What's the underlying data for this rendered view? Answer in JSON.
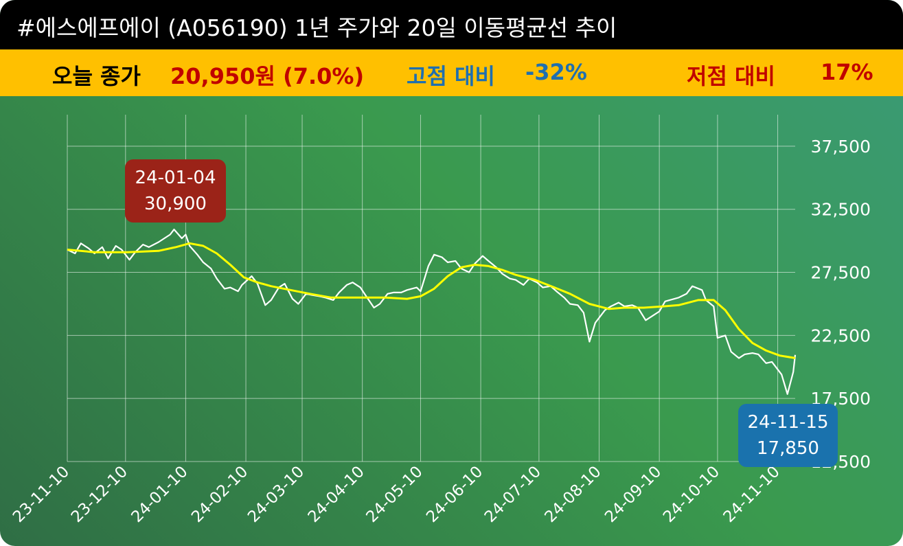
{
  "header": {
    "title": "#에스에프에이 (A056190) 1년 주가와 20일 이동평균선 추이"
  },
  "summary": {
    "close_label": "오늘 종가",
    "close_value": "20,950원 (7.0%)",
    "high_label": "고점 대비",
    "high_value": "-32%",
    "low_label": "저점 대비",
    "low_value": "17%"
  },
  "colors": {
    "title_bg": "#000000",
    "info_bg": "#ffc000",
    "close_color": "#c00000",
    "high_color": "#1f6fb0",
    "low_color": "#c00000",
    "price_line": "#ffffff",
    "ma_line": "#ffff00",
    "high_callout": "#9b2318",
    "low_callout": "#1a72ad"
  },
  "annotations": {
    "high": {
      "date": "24-01-04",
      "value": "30,900"
    },
    "low": {
      "date": "24-11-15",
      "value": "17,850"
    }
  },
  "chart_data": {
    "type": "line",
    "title": "",
    "xlabel": "",
    "ylabel": "",
    "ylim": [
      12500,
      40000
    ],
    "y_ticks": [
      "12,500",
      "17,500",
      "22,500",
      "27,500",
      "32,500",
      "37,500"
    ],
    "y_tick_values": [
      12500,
      17500,
      22500,
      27500,
      32500,
      37500
    ],
    "x_ticks": [
      "23-11-10",
      "23-12-10",
      "24-01-10",
      "24-02-10",
      "24-03-10",
      "24-04-10",
      "24-05-10",
      "24-06-10",
      "24-07-10",
      "24-08-10",
      "24-09-10",
      "24-10-10",
      "24-11-10"
    ],
    "x_range": [
      "2023-11-10",
      "2024-11-19"
    ],
    "grid": true,
    "series": [
      {
        "role": "price",
        "color": "#ffffff",
        "points": [
          [
            "2023-11-10",
            29300
          ],
          [
            "2023-11-14",
            29000
          ],
          [
            "2023-11-17",
            29800
          ],
          [
            "2023-11-21",
            29400
          ],
          [
            "2023-11-24",
            29000
          ],
          [
            "2023-11-28",
            29500
          ],
          [
            "2023-12-01",
            28600
          ],
          [
            "2023-12-05",
            29600
          ],
          [
            "2023-12-08",
            29300
          ],
          [
            "2023-12-12",
            28500
          ],
          [
            "2023-12-15",
            29100
          ],
          [
            "2023-12-19",
            29700
          ],
          [
            "2023-12-22",
            29500
          ],
          [
            "2023-12-27",
            29900
          ],
          [
            "2024-01-02",
            30500
          ],
          [
            "2024-01-04",
            30900
          ],
          [
            "2024-01-08",
            30200
          ],
          [
            "2024-01-10",
            30500
          ],
          [
            "2024-01-12",
            29600
          ],
          [
            "2024-01-16",
            28900
          ],
          [
            "2024-01-19",
            28300
          ],
          [
            "2024-01-23",
            27800
          ],
          [
            "2024-01-26",
            27000
          ],
          [
            "2024-01-30",
            26200
          ],
          [
            "2024-02-02",
            26300
          ],
          [
            "2024-02-06",
            26000
          ],
          [
            "2024-02-08",
            26500
          ],
          [
            "2024-02-13",
            27200
          ],
          [
            "2024-02-16",
            26600
          ],
          [
            "2024-02-20",
            24900
          ],
          [
            "2024-02-23",
            25300
          ],
          [
            "2024-02-27",
            26300
          ],
          [
            "2024-03-01",
            26600
          ],
          [
            "2024-03-05",
            25400
          ],
          [
            "2024-03-08",
            25000
          ],
          [
            "2024-03-12",
            25800
          ],
          [
            "2024-03-15",
            25700
          ],
          [
            "2024-03-19",
            25600
          ],
          [
            "2024-03-22",
            25500
          ],
          [
            "2024-03-26",
            25300
          ],
          [
            "2024-03-29",
            25900
          ],
          [
            "2024-04-02",
            26500
          ],
          [
            "2024-04-05",
            26700
          ],
          [
            "2024-04-09",
            26300
          ],
          [
            "2024-04-12",
            25600
          ],
          [
            "2024-04-16",
            24700
          ],
          [
            "2024-04-19",
            25000
          ],
          [
            "2024-04-23",
            25800
          ],
          [
            "2024-04-26",
            25900
          ],
          [
            "2024-04-30",
            25900
          ],
          [
            "2024-05-03",
            26100
          ],
          [
            "2024-05-08",
            26300
          ],
          [
            "2024-05-10",
            26000
          ],
          [
            "2024-05-14",
            28000
          ],
          [
            "2024-05-17",
            28900
          ],
          [
            "2024-05-21",
            28700
          ],
          [
            "2024-05-24",
            28300
          ],
          [
            "2024-05-28",
            28400
          ],
          [
            "2024-05-31",
            27800
          ],
          [
            "2024-06-04",
            27500
          ],
          [
            "2024-06-07",
            28200
          ],
          [
            "2024-06-11",
            28800
          ],
          [
            "2024-06-14",
            28400
          ],
          [
            "2024-06-18",
            27900
          ],
          [
            "2024-06-21",
            27400
          ],
          [
            "2024-06-25",
            27000
          ],
          [
            "2024-06-28",
            26900
          ],
          [
            "2024-07-02",
            26500
          ],
          [
            "2024-07-05",
            27000
          ],
          [
            "2024-07-09",
            26700
          ],
          [
            "2024-07-12",
            26300
          ],
          [
            "2024-07-16",
            26400
          ],
          [
            "2024-07-19",
            26000
          ],
          [
            "2024-07-23",
            25500
          ],
          [
            "2024-07-26",
            25000
          ],
          [
            "2024-07-30",
            24900
          ],
          [
            "2024-08-02",
            24300
          ],
          [
            "2024-08-05",
            22000
          ],
          [
            "2024-08-08",
            23500
          ],
          [
            "2024-08-13",
            24500
          ],
          [
            "2024-08-16",
            24800
          ],
          [
            "2024-08-20",
            25100
          ],
          [
            "2024-08-23",
            24800
          ],
          [
            "2024-08-27",
            24900
          ],
          [
            "2024-08-30",
            24700
          ],
          [
            "2024-09-03",
            23700
          ],
          [
            "2024-09-06",
            24000
          ],
          [
            "2024-09-10",
            24400
          ],
          [
            "2024-09-13",
            25200
          ],
          [
            "2024-09-20",
            25500
          ],
          [
            "2024-09-24",
            25800
          ],
          [
            "2024-09-27",
            26400
          ],
          [
            "2024-10-02",
            26100
          ],
          [
            "2024-10-04",
            25300
          ],
          [
            "2024-10-08",
            24800
          ],
          [
            "2024-10-10",
            22300
          ],
          [
            "2024-10-14",
            22500
          ],
          [
            "2024-10-17",
            21200
          ],
          [
            "2024-10-21",
            20700
          ],
          [
            "2024-10-24",
            21000
          ],
          [
            "2024-10-28",
            21100
          ],
          [
            "2024-10-31",
            21000
          ],
          [
            "2024-11-04",
            20300
          ],
          [
            "2024-11-07",
            20400
          ],
          [
            "2024-11-12",
            19400
          ],
          [
            "2024-11-15",
            17850
          ],
          [
            "2024-11-18",
            19600
          ],
          [
            "2024-11-19",
            20950
          ]
        ]
      },
      {
        "role": "ma20",
        "color": "#ffff00",
        "points": [
          [
            "2023-11-10",
            29300
          ],
          [
            "2023-11-24",
            29100
          ],
          [
            "2023-12-11",
            29100
          ],
          [
            "2023-12-27",
            29200
          ],
          [
            "2024-01-05",
            29500
          ],
          [
            "2024-01-12",
            29800
          ],
          [
            "2024-01-19",
            29600
          ],
          [
            "2024-01-26",
            29000
          ],
          [
            "2024-02-02",
            28100
          ],
          [
            "2024-02-09",
            27100
          ],
          [
            "2024-02-16",
            26700
          ],
          [
            "2024-02-23",
            26400
          ],
          [
            "2024-03-04",
            26100
          ],
          [
            "2024-03-14",
            25800
          ],
          [
            "2024-03-25",
            25500
          ],
          [
            "2024-04-08",
            25500
          ],
          [
            "2024-04-22",
            25500
          ],
          [
            "2024-05-03",
            25400
          ],
          [
            "2024-05-10",
            25600
          ],
          [
            "2024-05-17",
            26200
          ],
          [
            "2024-05-24",
            27200
          ],
          [
            "2024-05-31",
            27900
          ],
          [
            "2024-06-07",
            28100
          ],
          [
            "2024-06-14",
            28000
          ],
          [
            "2024-06-21",
            27700
          ],
          [
            "2024-06-28",
            27300
          ],
          [
            "2024-07-08",
            26900
          ],
          [
            "2024-07-18",
            26300
          ],
          [
            "2024-07-26",
            25800
          ],
          [
            "2024-08-05",
            25000
          ],
          [
            "2024-08-15",
            24600
          ],
          [
            "2024-08-23",
            24700
          ],
          [
            "2024-09-02",
            24700
          ],
          [
            "2024-09-12",
            24800
          ],
          [
            "2024-09-20",
            24900
          ],
          [
            "2024-09-30",
            25300
          ],
          [
            "2024-10-08",
            25300
          ],
          [
            "2024-10-14",
            24500
          ],
          [
            "2024-10-21",
            23000
          ],
          [
            "2024-10-28",
            21900
          ],
          [
            "2024-11-04",
            21300
          ],
          [
            "2024-11-11",
            20900
          ],
          [
            "2024-11-19",
            20700
          ]
        ]
      }
    ]
  }
}
